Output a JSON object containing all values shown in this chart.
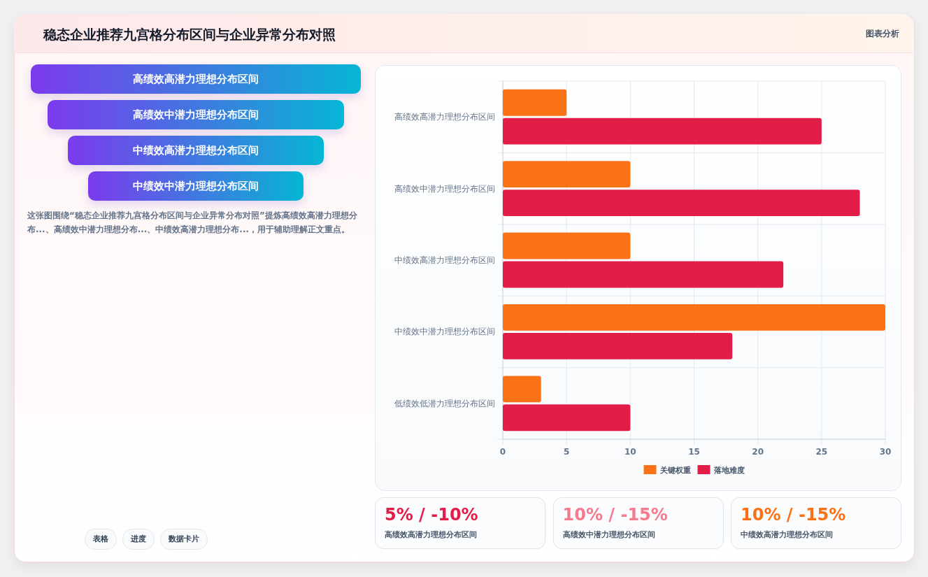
{
  "chart_data": [
    {
      "type": "other",
      "title": "稳态企业推荐九宫格分布区间与企业异常分布对照",
      "categories": [
        "高绩效高潜力理想分布区间",
        "高绩效中潜力理想分布区间",
        "中绩效高潜力理想分布区间",
        "中绩效中潜力理想分布区间"
      ],
      "annotations": [
        "图表分析",
        "这张图围绕“稳态企业推荐九宫格分布区间与企业异常分布对照”提炼高绩效高潜力理想分布...、高绩效中潜力理想分布...、中绩效高潜力理想分布...，用于辅助理解正文重点。",
        "表格",
        "进度",
        "数据卡片"
      ]
    },
    {
      "type": "bar",
      "orientation": "horizontal",
      "categories": [
        "高绩效高潜力理想分布区间",
        "高绩效中潜力理想分布区间",
        "中绩效高潜力理想分布区间",
        "中绩效中潜力理想分布区间",
        "低绩效低潜力理想分布区间"
      ],
      "series": [
        {
          "name": "关键权重",
          "color": "#f97316",
          "values": [
            5,
            10,
            10,
            30,
            3
          ]
        },
        {
          "name": "落地难度",
          "color": "#e11d48",
          "values": [
            25,
            28,
            22,
            18,
            10
          ]
        }
      ],
      "xlim": [
        0,
        30
      ],
      "xticks": [
        0,
        5,
        10,
        15,
        20,
        25,
        30
      ],
      "grid": true,
      "legend": "bottom"
    },
    {
      "type": "other",
      "categories": [
        "高绩效高潜力理想分布区间",
        "高绩效中潜力理想分布区间",
        "中绩效高潜力理想分布区间"
      ],
      "value_labels": [
        "5% / -10%",
        "10% / -15%",
        "10% / -15%"
      ]
    }
  ]
}
